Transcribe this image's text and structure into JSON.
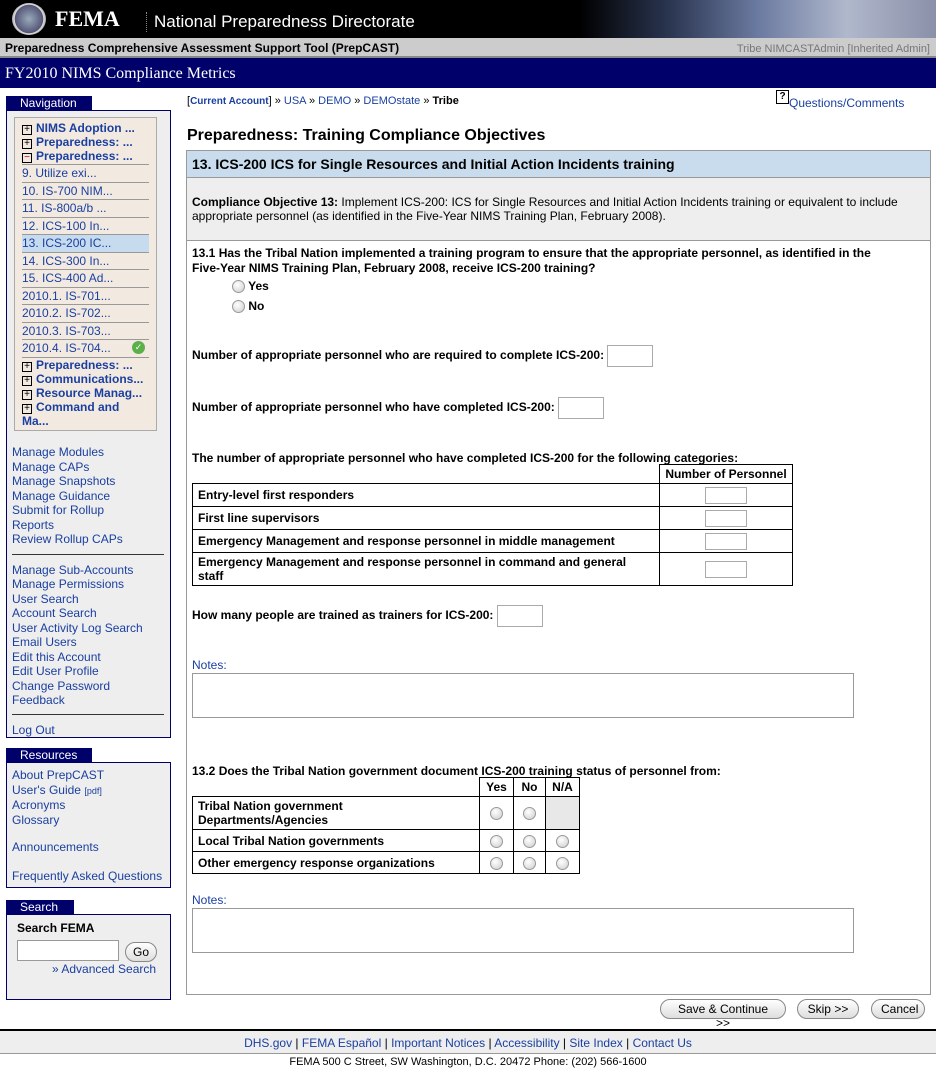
{
  "header": {
    "logo": "FEMA",
    "subtitle": "National Preparedness Directorate",
    "tool": "Preparedness Comprehensive Assessment Support Tool (PrepCAST)",
    "user": "Tribe NIMCASTAdmin [Inherited Admin]",
    "banner": "FY2010 NIMS Compliance Metrics"
  },
  "nav": {
    "title": "Navigation",
    "tree": [
      {
        "label": "NIMS Adoption ...",
        "type": "plus"
      },
      {
        "label": "Preparedness: ...",
        "type": "plus"
      },
      {
        "label": "Preparedness: ...",
        "type": "minus"
      },
      {
        "label": "9. Utilize exi..."
      },
      {
        "label": "10. IS-700 NIM..."
      },
      {
        "label": "11. IS-800a/b ..."
      },
      {
        "label": "12. ICS-100 In..."
      },
      {
        "label": "13. ICS-200 IC...",
        "selected": true
      },
      {
        "label": "14. ICS-300 In..."
      },
      {
        "label": "15. ICS-400 Ad..."
      },
      {
        "label": "2010.1. IS-701..."
      },
      {
        "label": "2010.2. IS-702..."
      },
      {
        "label": "2010.3. IS-703..."
      },
      {
        "label": "2010.4. IS-704...",
        "complete": true
      },
      {
        "label": "Preparedness: ...",
        "type": "plus"
      },
      {
        "label": "Communications...",
        "type": "plus"
      },
      {
        "label": "Resource Manag...",
        "type": "plus"
      },
      {
        "label": "Command and Ma...",
        "type": "plus"
      }
    ],
    "links1": [
      "Manage Modules",
      "Manage CAPs",
      "Manage Snapshots",
      "Manage Guidance",
      "Submit for Rollup",
      "Reports",
      "Review Rollup CAPs"
    ],
    "links2": [
      "Manage Sub-Accounts",
      "Manage Permissions",
      "User Search",
      "Account Search",
      "User Activity Log Search",
      "Email Users",
      "Edit this Account",
      "Edit User Profile",
      "Change Password",
      "Feedback"
    ],
    "logout": "Log Out"
  },
  "resources": {
    "title": "Resources",
    "about": "About PrepCAST",
    "guide": "User's Guide",
    "guide_tag": "[pdf]",
    "acronyms": "Acronyms",
    "glossary": "Glossary",
    "announcements": "Announcements",
    "faq": "Frequently Asked Questions"
  },
  "search": {
    "title": "Search",
    "label": "Search FEMA",
    "value": "",
    "go": "Go",
    "advanced": "» Advanced Search"
  },
  "breadcrumb": {
    "current": "Current Account",
    "items": [
      "USA",
      "DEMO",
      "DEMOstate"
    ],
    "last": "Tribe",
    "sep": "»"
  },
  "help": {
    "label": "Questions/Comments",
    "icon": "question-icon"
  },
  "page": {
    "title": "Preparedness: Training Compliance Objectives",
    "section": "13. ICS-200 ICS for Single Resources and Initial Action Incidents training",
    "objective_label": "Compliance Objective 13:",
    "objective_text": " Implement ICS-200: ICS for Single Resources and Initial Action Incidents training or equivalent to include appropriate personnel (as identified in the Five-Year NIMS Training Plan, February 2008).",
    "q1": "13.1 Has the Tribal Nation implemented a training program to ensure that the appropriate personnel, as identified in the Five-Year NIMS Training Plan, February 2008, receive ICS-200 training?",
    "yes": "Yes",
    "no": "No",
    "required": "Number of appropriate personnel who are required to complete ICS-200:",
    "required_value": "",
    "completed": "Number of appropriate personnel who have completed ICS-200:",
    "completed_value": "",
    "categories_title": "The number of appropriate personnel who have completed ICS-200 for the following categories:",
    "categories_header": "Number of Personnel",
    "categories": [
      "Entry-level first responders",
      "First line supervisors",
      "Emergency Management and response personnel in middle management",
      "Emergency Management and response personnel in command and general staff"
    ],
    "trainers": "How many people are trained as trainers for ICS-200:",
    "trainers_value": "",
    "notes": "Notes:",
    "q2": "13.2 Does the Tribal Nation government document ICS-200 training status of personnel from:",
    "q2_headers": [
      "Yes",
      "No",
      "N/A"
    ],
    "q2_rows": [
      {
        "label": "Tribal Nation government Departments/Agencies",
        "na": false
      },
      {
        "label": "Local Tribal Nation governments",
        "na": true
      },
      {
        "label": "Other emergency response organizations",
        "na": true
      }
    ]
  },
  "buttons": {
    "save": "Save & Continue >>",
    "skip": "Skip >>",
    "cancel": "Cancel"
  },
  "footer": {
    "links": [
      "DHS.gov",
      "FEMA Español",
      "Important Notices",
      "Accessibility",
      "Site Index",
      "Contact Us"
    ],
    "address": "FEMA 500 C Street, SW Washington, D.C. 20472 Phone: (202) 566-1600"
  },
  "colors": {
    "navy": "#00006b",
    "link": "#1a3fa0",
    "selected": "#c6dbee"
  }
}
